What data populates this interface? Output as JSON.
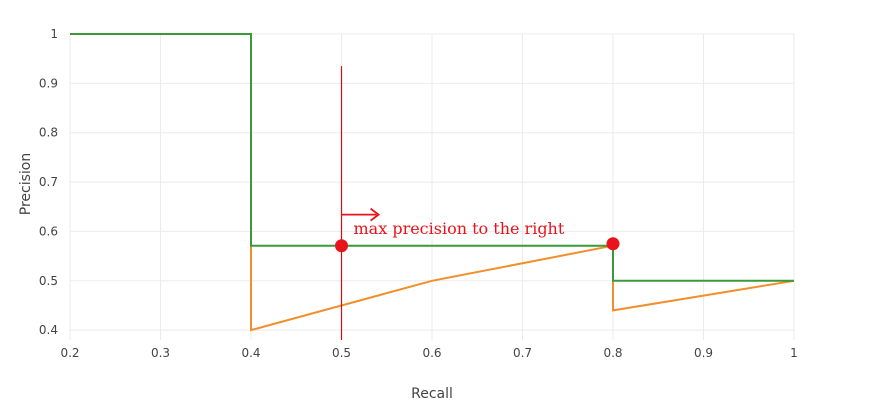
{
  "chart_data": {
    "type": "line",
    "title": "",
    "xlabel": "Recall",
    "ylabel": "Precision",
    "xlim": [
      0.2,
      1.0
    ],
    "ylim": [
      0.38,
      1.0
    ],
    "grid": true,
    "x_ticks": [
      {
        "value": 0.2,
        "label": "0.2"
      },
      {
        "value": 0.3,
        "label": "0.3"
      },
      {
        "value": 0.4,
        "label": "0.4"
      },
      {
        "value": 0.5,
        "label": "0.5"
      },
      {
        "value": 0.6,
        "label": "0.6"
      },
      {
        "value": 0.7,
        "label": "0.7"
      },
      {
        "value": 0.8,
        "label": "0.8"
      },
      {
        "value": 0.9,
        "label": "0.9"
      },
      {
        "value": 1.0,
        "label": "1"
      }
    ],
    "y_ticks": [
      {
        "value": 0.4,
        "label": "0.4"
      },
      {
        "value": 0.5,
        "label": "0.5"
      },
      {
        "value": 0.6,
        "label": "0.6"
      },
      {
        "value": 0.7,
        "label": "0.7"
      },
      {
        "value": 0.8,
        "label": "0.8"
      },
      {
        "value": 0.9,
        "label": "0.9"
      },
      {
        "value": 1.0,
        "label": "1"
      }
    ],
    "series": [
      {
        "color": "#f28e2b",
        "points": [
          [
            0.2,
            1.0
          ],
          [
            0.4,
            1.0
          ],
          [
            0.4,
            0.4
          ],
          [
            0.6,
            0.5
          ],
          [
            0.8,
            0.571
          ],
          [
            0.8,
            0.44
          ],
          [
            1.0,
            0.5
          ]
        ]
      },
      {
        "color": "#3a9a3a",
        "points": [
          [
            0.2,
            1.0
          ],
          [
            0.4,
            1.0
          ],
          [
            0.4,
            0.571
          ],
          [
            0.8,
            0.571
          ],
          [
            0.8,
            0.5
          ],
          [
            1.0,
            0.5
          ]
        ]
      }
    ],
    "markers": [
      {
        "x": 0.5,
        "y": 0.571,
        "color": "#e8131b"
      },
      {
        "x": 0.8,
        "y": 0.575,
        "color": "#e8131b"
      }
    ],
    "vline": {
      "x": 0.5,
      "y_from": 0.38,
      "y_to": 0.935,
      "color": "#cc1111"
    },
    "annotation": {
      "text": "max precision to the right",
      "color": "#e8131b",
      "anchor": {
        "x": 0.5,
        "y": 0.572
      },
      "arrow": {
        "x_from": 0.5,
        "x_to": 0.541,
        "y": 0.634
      }
    }
  }
}
